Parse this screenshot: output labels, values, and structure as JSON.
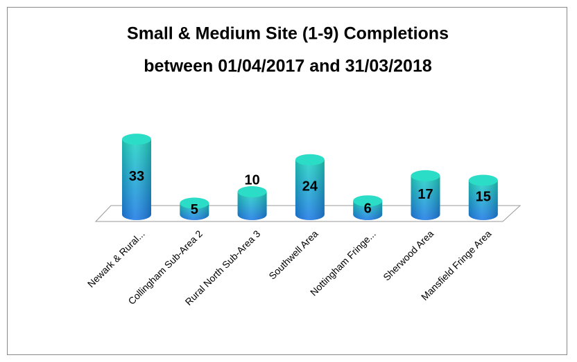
{
  "chart_data": {
    "type": "bar",
    "title": "Small & Medium Site (1-9) Completions",
    "subtitle": "between 01/04/2017 and 31/03/2018",
    "categories": [
      "Newark & Rural...",
      "Collingham Sub-Area 2",
      "Rural North Sub-Area 3",
      "Southwell Area",
      "Nottingham Fringe...",
      "Sherwood Area",
      "Mansfield Fringe Area"
    ],
    "values": [
      33,
      5,
      10,
      24,
      6,
      17,
      15
    ],
    "color": "#1e7be6"
  }
}
